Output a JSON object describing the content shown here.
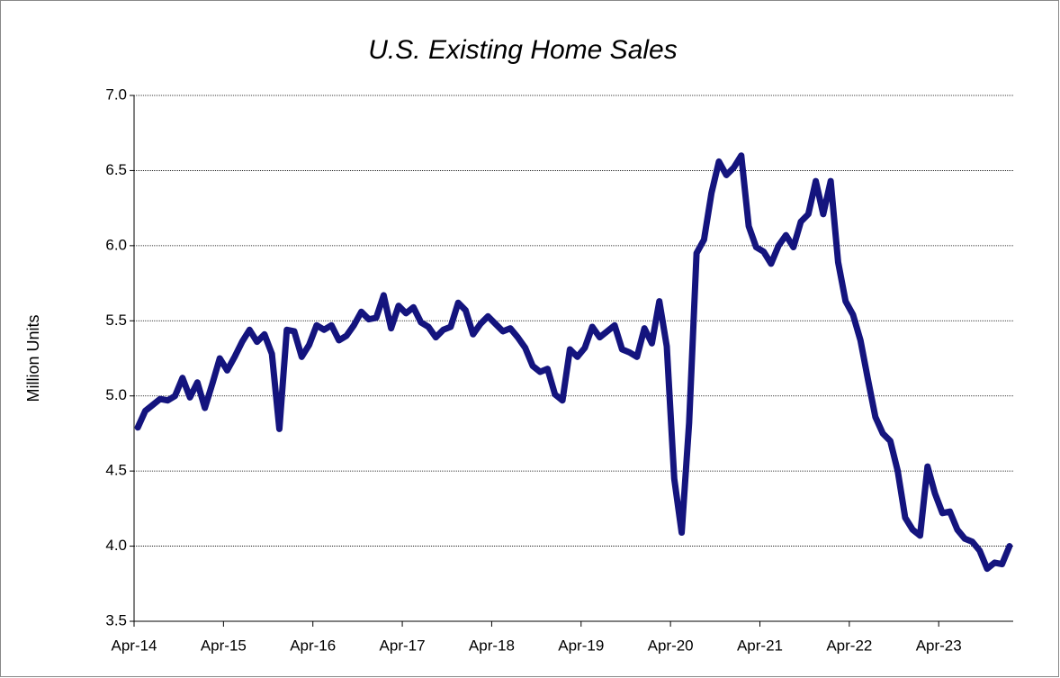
{
  "chart_data": {
    "type": "line",
    "title": "U.S. Existing Home Sales",
    "y_label": "Million Units",
    "categories": [
      "Apr-14",
      null,
      null,
      null,
      null,
      null,
      null,
      null,
      null,
      null,
      null,
      null,
      "Apr-15",
      null,
      null,
      null,
      null,
      null,
      null,
      null,
      null,
      null,
      null,
      null,
      "Apr-16",
      null,
      null,
      null,
      null,
      null,
      null,
      null,
      null,
      null,
      null,
      null,
      "Apr-17",
      null,
      null,
      null,
      null,
      null,
      null,
      null,
      null,
      null,
      null,
      null,
      "Apr-18",
      null,
      null,
      null,
      null,
      null,
      null,
      null,
      null,
      null,
      null,
      null,
      "Apr-19",
      null,
      null,
      null,
      null,
      null,
      null,
      null,
      null,
      null,
      null,
      null,
      "Apr-20",
      null,
      null,
      null,
      null,
      null,
      null,
      null,
      null,
      null,
      null,
      null,
      "Apr-21",
      null,
      null,
      null,
      null,
      null,
      null,
      null,
      null,
      null,
      null,
      null,
      "Apr-22",
      null,
      null,
      null,
      null,
      null,
      null,
      null,
      null,
      null,
      null,
      null,
      "Apr-23",
      null,
      null,
      null,
      null,
      null,
      null,
      null,
      null,
      null
    ],
    "series": [
      {
        "name": "Existing Home Sales",
        "color": "#14147e",
        "values": [
          4.79,
          4.9,
          4.94,
          4.98,
          4.97,
          5.0,
          5.12,
          4.99,
          5.09,
          4.92,
          5.08,
          5.25,
          5.17,
          5.26,
          5.36,
          5.44,
          5.36,
          5.41,
          5.28,
          4.78,
          5.44,
          5.43,
          5.26,
          5.34,
          5.47,
          5.44,
          5.47,
          5.37,
          5.4,
          5.47,
          5.56,
          5.51,
          5.52,
          5.67,
          5.45,
          5.6,
          5.55,
          5.59,
          5.49,
          5.46,
          5.39,
          5.44,
          5.46,
          5.62,
          5.57,
          5.41,
          5.48,
          5.53,
          5.48,
          5.43,
          5.45,
          5.39,
          5.32,
          5.2,
          5.16,
          5.18,
          5.01,
          4.97,
          5.31,
          5.26,
          5.32,
          5.46,
          5.39,
          5.43,
          5.47,
          5.31,
          5.29,
          5.26,
          5.45,
          5.35,
          5.63,
          5.33,
          4.45,
          4.09,
          4.82,
          5.95,
          6.04,
          6.35,
          6.56,
          6.47,
          6.52,
          6.6,
          6.13,
          5.99,
          5.96,
          5.88,
          6.0,
          6.07,
          5.99,
          6.16,
          6.21,
          6.43,
          6.21,
          6.43,
          5.89,
          5.63,
          5.54,
          5.37,
          5.11,
          4.86,
          4.75,
          4.7,
          4.5,
          4.19,
          4.11,
          4.07,
          4.53,
          4.35,
          4.22,
          4.23,
          4.11,
          4.05,
          4.03,
          3.97,
          3.85,
          3.89,
          3.88,
          4.0
        ]
      }
    ],
    "ylim": [
      3.5,
      7
    ],
    "yticks": [
      {
        "value": 3.5,
        "label": "3.5"
      },
      {
        "value": 4,
        "label": "4.0"
      },
      4.5,
      {
        "value": 5,
        "label": "5.0"
      },
      5.5,
      {
        "value": 6,
        "label": "6.0"
      },
      6.5,
      {
        "value": 7,
        "label": "7.0"
      }
    ],
    "grid": true
  }
}
